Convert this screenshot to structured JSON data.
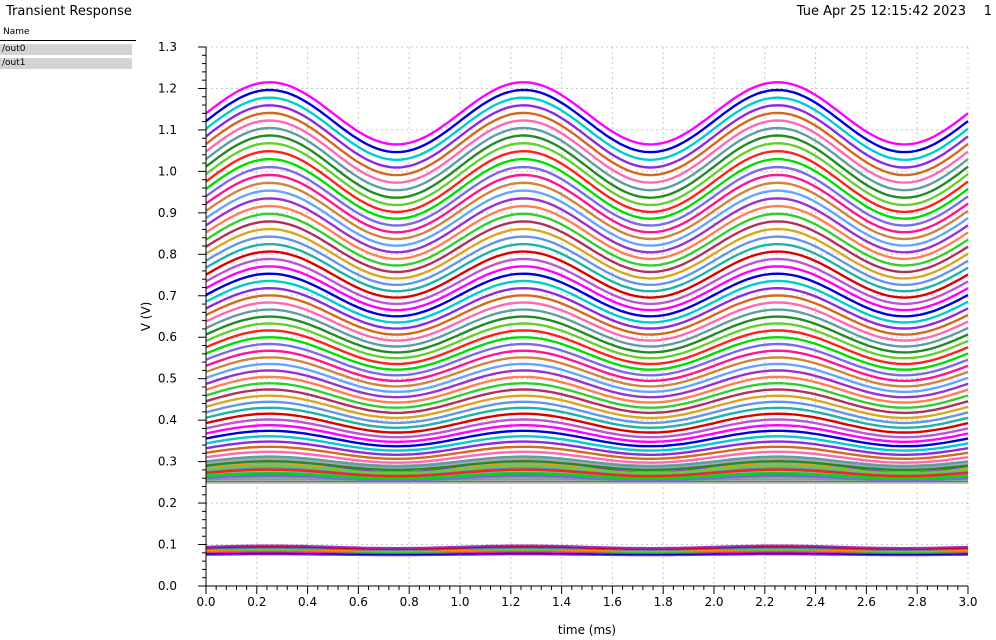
{
  "header": {
    "title": "Transient Response",
    "timestamp": "Tue Apr 25 12:15:42 2023",
    "page": "1"
  },
  "legend": {
    "header": "Name",
    "items": [
      "/out0",
      "/out1"
    ]
  },
  "chart_data": {
    "type": "line",
    "title": "Transient Response",
    "xlabel": "time (ms)",
    "ylabel": "V (V)",
    "xlim": [
      0.0,
      3.0
    ],
    "ylim": [
      0.0,
      1.3
    ],
    "x_ticks": [
      "0.0",
      "0.2",
      "0.4",
      "0.6",
      "0.8",
      "1.0",
      "1.2",
      "1.4",
      "1.6",
      "1.8",
      "2.0",
      "2.2",
      "2.4",
      "2.6",
      "2.8",
      "3.0"
    ],
    "y_ticks": [
      "0.0",
      "0.1",
      "0.2",
      "0.3",
      "0.4",
      "0.5",
      "0.6",
      "0.7",
      "0.8",
      "0.9",
      "1.0",
      "1.1",
      "1.2",
      "1.3"
    ],
    "grid": true,
    "waveform": "sine",
    "frequency_khz": 1.0,
    "series": [
      {
        "name": "/out0",
        "family": "sweep",
        "count": 60,
        "offset_range": [
          0.26,
          1.14
        ],
        "amplitude_range": [
          0.005,
          0.075
        ],
        "colors": [
          "#ff00ff",
          "#0000dd",
          "#00cccc",
          "#8a2be2",
          "#d2691e",
          "#ff69b4",
          "#5f9ea0",
          "#228b22",
          "#66cc33",
          "#ff2020",
          "#00dd00",
          "#7b68ee",
          "#ff1493",
          "#cd853f",
          "#66a3ff",
          "#9932cc",
          "#ff7f50",
          "#32cd32",
          "#b03060",
          "#daa520",
          "#6495ed",
          "#20b2aa",
          "#dd0000",
          "#ba55d3"
        ]
      },
      {
        "name": "/out0",
        "family": "base",
        "offset_range": [
          0.25,
          0.3
        ],
        "amplitude_range": [
          0.0,
          0.01
        ],
        "color": "#a9a9a9"
      },
      {
        "name": "/out1",
        "family": "low",
        "count": 8,
        "offset_range": [
          0.075,
          0.095
        ],
        "amplitude_range": [
          0.001,
          0.003
        ],
        "colors": [
          "#8a2be2",
          "#0000cd",
          "#ff1493",
          "#32cd32",
          "#ff8c00",
          "#4682b4",
          "#cc0000",
          "#9932cc"
        ]
      }
    ]
  }
}
